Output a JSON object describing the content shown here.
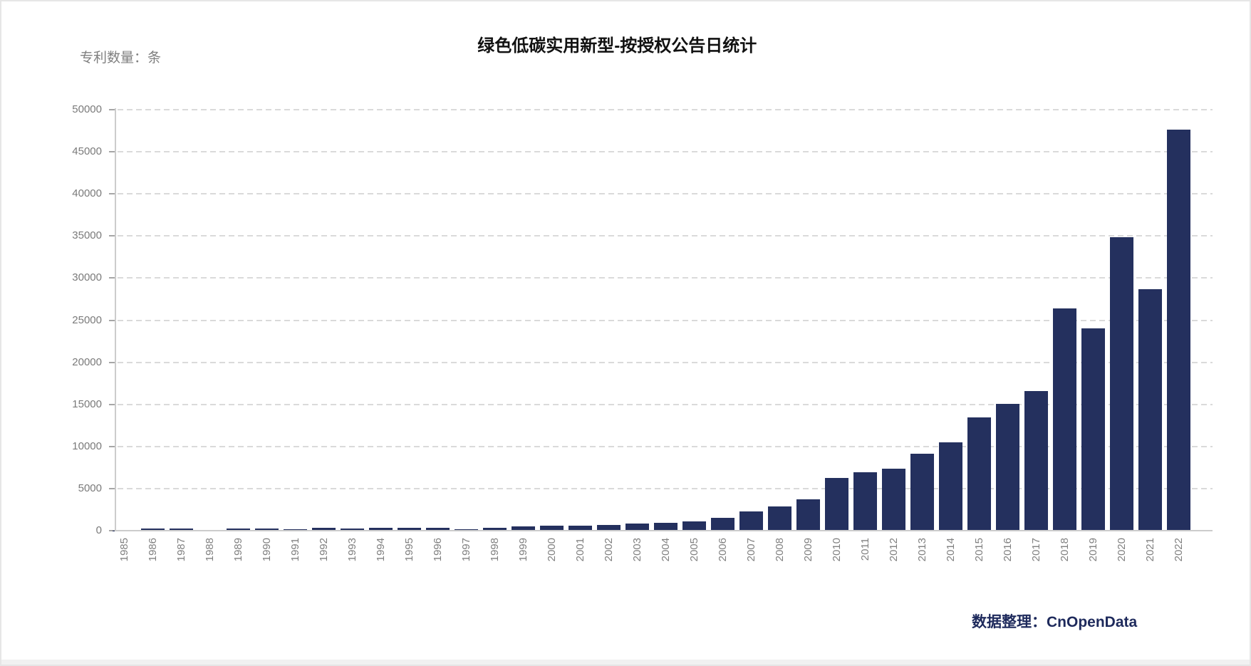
{
  "page": {
    "attribution": "数据整理：CnOpenData"
  },
  "chart_data": {
    "type": "bar",
    "title": "绿色低碳实用新型-按授权公告日统计",
    "ylabel": "专利数量：条",
    "xlabel": "",
    "categories": [
      1985,
      1986,
      1987,
      1988,
      1989,
      1990,
      1991,
      1992,
      1993,
      1994,
      1995,
      1996,
      1997,
      1998,
      1999,
      2000,
      2001,
      2002,
      2003,
      2004,
      2005,
      2006,
      2007,
      2008,
      2009,
      2010,
      2011,
      2012,
      2013,
      2014,
      2015,
      2016,
      2017,
      2018,
      2019,
      2020,
      2021,
      2022
    ],
    "values": [
      16,
      260,
      255,
      30,
      215,
      220,
      190,
      350,
      240,
      350,
      320,
      300,
      190,
      330,
      500,
      620,
      590,
      710,
      810,
      960,
      1090,
      1500,
      2250,
      2900,
      3760,
      6280,
      6950,
      7380,
      9150,
      10480,
      13470,
      15030,
      16550,
      26360,
      24020,
      34890,
      28700,
      47630
    ],
    "ylim": [
      0,
      50000
    ],
    "ytick_interval": 5000,
    "grid": "horizontal-dashed",
    "legend": "none",
    "x_tick_rotation": -90,
    "bar_color": "#24305e"
  }
}
